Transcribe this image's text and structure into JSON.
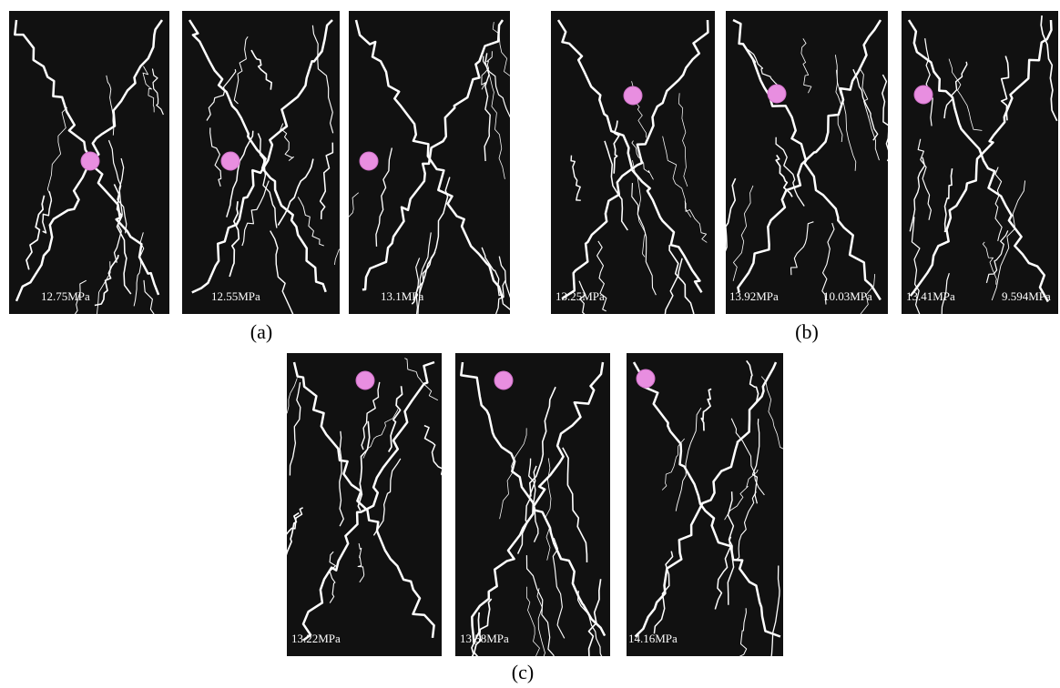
{
  "figure": {
    "groups": [
      {
        "caption": "(a)",
        "panels": [
          {
            "labels": [
              "12.75MPa"
            ]
          },
          {
            "labels": [
              "12.55MPa"
            ]
          },
          {
            "labels": [
              "13.1MPa"
            ]
          }
        ]
      },
      {
        "caption": "(b)",
        "panels": [
          {
            "labels": [
              "13.25MPa"
            ]
          },
          {
            "labels": [
              "13.92MPa",
              "10.03MPa"
            ]
          },
          {
            "labels": [
              "13.41MPa",
              "9.594MPa"
            ]
          }
        ]
      },
      {
        "caption": "(c)",
        "panels": [
          {
            "labels": [
              "13.22MPa"
            ]
          },
          {
            "labels": [
              "13.58MPa"
            ]
          },
          {
            "labels": [
              "14.16MPa"
            ]
          }
        ]
      }
    ]
  }
}
